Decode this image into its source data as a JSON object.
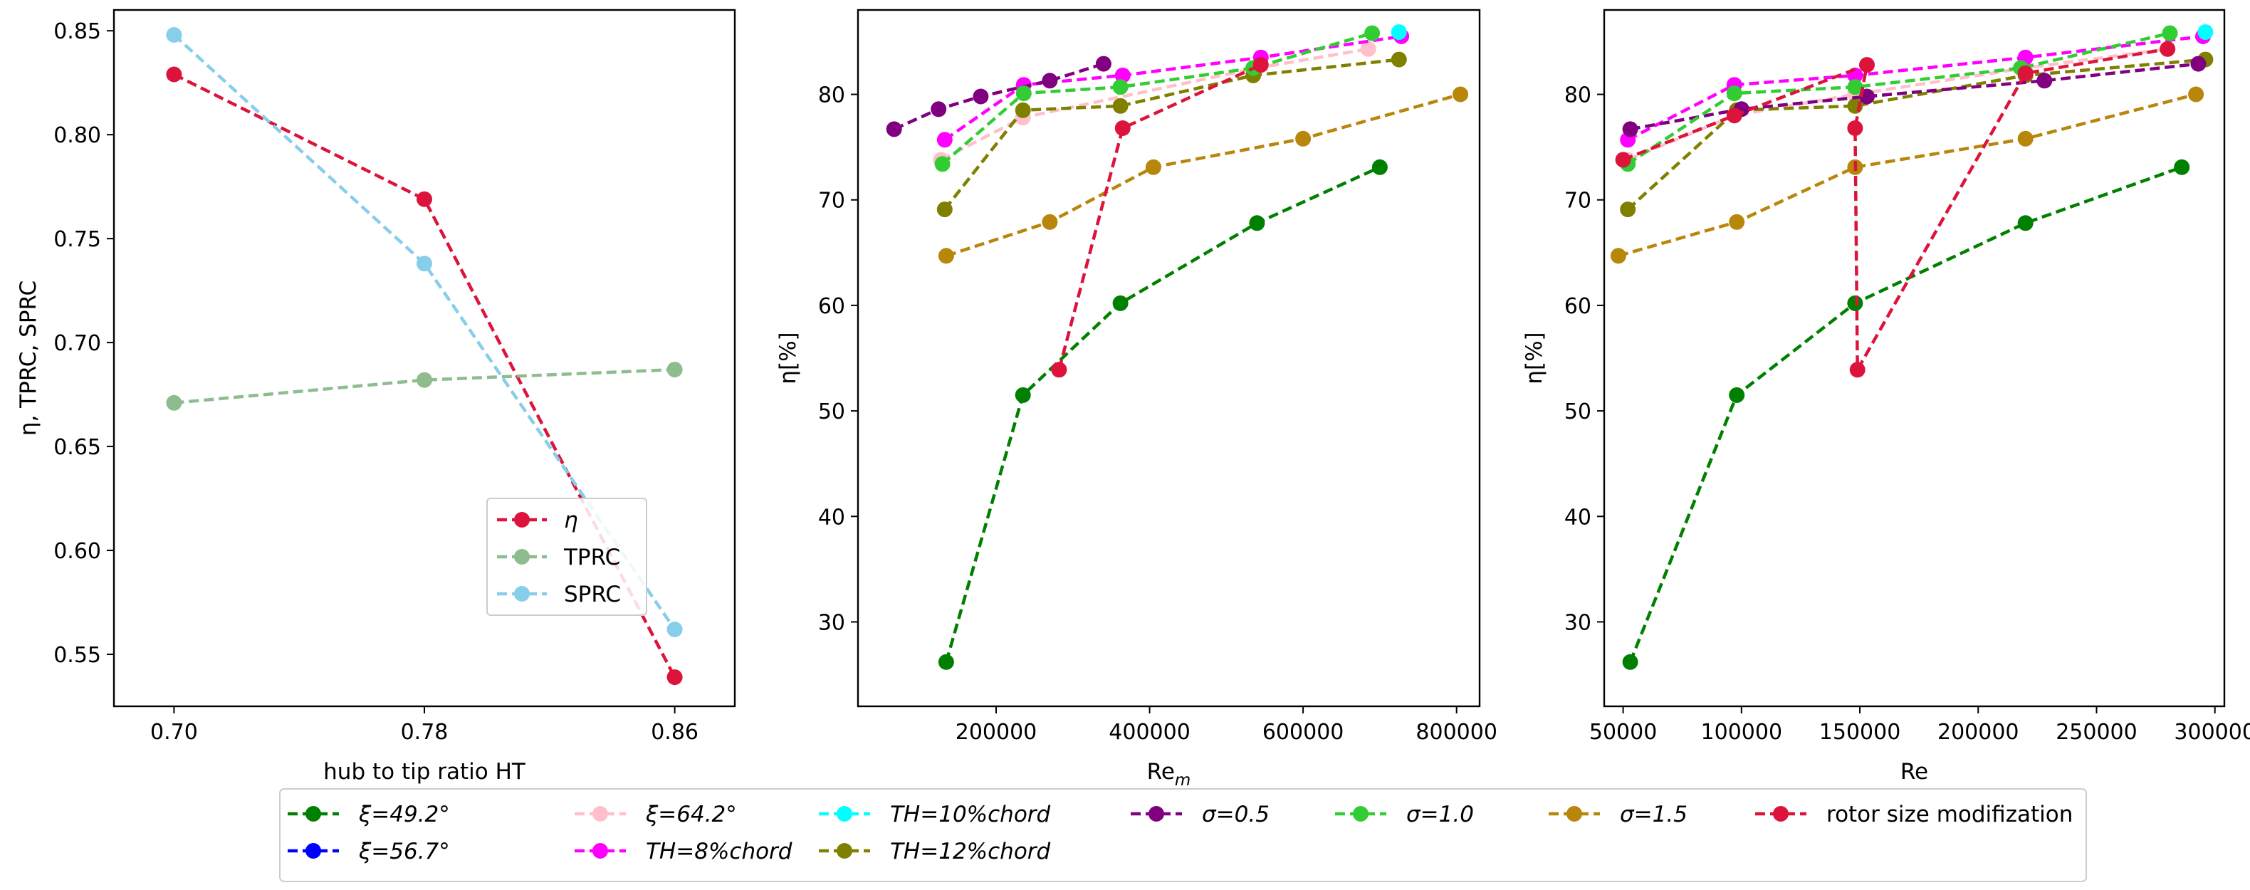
{
  "chart_data": [
    {
      "type": "line",
      "xlabel_prefix": "hub to tip ratio HT",
      "ylabel": "η, TPRC, SPRC",
      "categories": [
        0.7,
        0.78,
        0.86
      ],
      "xticks": [
        "0.70",
        "0.78",
        "0.86"
      ],
      "ylim": [
        0.525,
        0.86
      ],
      "yticks": [
        0.55,
        0.6,
        0.65,
        0.7,
        0.75,
        0.8,
        0.85
      ],
      "ytick_labels": [
        "0.55",
        "0.60",
        "0.65",
        "0.70",
        "0.75",
        "0.80",
        "0.85"
      ],
      "series": [
        {
          "name": "η",
          "color": "#DC143C",
          "x": [
            0.7,
            0.78,
            0.86
          ],
          "y": [
            0.829,
            0.769,
            0.539
          ]
        },
        {
          "name": "TPRC",
          "color": "#8FBC8F",
          "x": [
            0.7,
            0.78,
            0.86
          ],
          "y": [
            0.671,
            0.682,
            0.687
          ]
        },
        {
          "name": "SPRC",
          "color": "#87CEEB",
          "x": [
            0.7,
            0.78,
            0.86
          ],
          "y": [
            0.848,
            0.738,
            0.562
          ]
        }
      ],
      "legend": {
        "placement": "lower-right",
        "entries": [
          "η",
          "TPRC",
          "SPRC"
        ]
      }
    },
    {
      "type": "line",
      "xlabel": "Re",
      "xlabel_sub": "m",
      "ylabel": "η[%]",
      "xlim": [
        20000,
        830000
      ],
      "ylim": [
        22,
        88
      ],
      "xticks": [
        200000,
        400000,
        600000,
        800000
      ],
      "xtick_labels": [
        "200000",
        "400000",
        "600000",
        "800000"
      ],
      "yticks": [
        30,
        40,
        50,
        60,
        70,
        80
      ],
      "ytick_labels": [
        "30",
        "40",
        "50",
        "60",
        "70",
        "80"
      ],
      "series": [
        {
          "name": "ξ=49.2°",
          "color": "#008000",
          "x": [
            135000,
            235000,
            362000,
            540000,
            700000
          ],
          "y": [
            26.2,
            51.5,
            60.2,
            67.8,
            73.1
          ]
        },
        {
          "name": "ξ=56.7°",
          "color": "#0000FF",
          "x": [],
          "y": []
        },
        {
          "name": "ξ=64.2°",
          "color": "#FFC0CB",
          "x": [
            128000,
            235000,
            540000,
            685000
          ],
          "y": [
            73.8,
            77.8,
            82.5,
            84.3
          ]
        },
        {
          "name": "TH=8%chord",
          "color": "#FF00FF",
          "x": [
            133000,
            236000,
            365000,
            545000,
            728000
          ],
          "y": [
            75.7,
            80.9,
            81.8,
            83.5,
            85.5
          ]
        },
        {
          "name": "TH=10%chord",
          "color": "#00FFFF",
          "x": [
            725000
          ],
          "y": [
            85.9
          ]
        },
        {
          "name": "TH=12%chord",
          "color": "#808000",
          "x": [
            133000,
            235000,
            362000,
            535000,
            725000
          ],
          "y": [
            69.1,
            78.5,
            78.9,
            81.8,
            83.3
          ]
        },
        {
          "name": "σ=0.5",
          "color": "#800080",
          "x": [
            67000,
            125000,
            180000,
            270000,
            340000
          ],
          "y": [
            76.7,
            78.6,
            79.8,
            81.3,
            82.9
          ]
        },
        {
          "name": "σ=1.0",
          "color": "#32CD32",
          "x": [
            130000,
            236000,
            362000,
            535000,
            690000
          ],
          "y": [
            73.4,
            80.1,
            80.7,
            82.5,
            85.8
          ]
        },
        {
          "name": "σ=1.5",
          "color": "#B8860B",
          "x": [
            135000,
            270000,
            405000,
            600000,
            805000
          ],
          "y": [
            64.7,
            67.9,
            73.1,
            75.8,
            80.0
          ]
        },
        {
          "name": "rotor size modifization",
          "color": "#DC143C",
          "x": [
            282000,
            365000,
            545000
          ],
          "y": [
            53.9,
            76.8,
            82.8
          ]
        }
      ]
    },
    {
      "type": "line",
      "xlabel": "Re",
      "ylabel": "η[%]",
      "xlim": [
        42000,
        304000
      ],
      "ylim": [
        22,
        88
      ],
      "xticks": [
        50000,
        100000,
        150000,
        200000,
        250000,
        300000
      ],
      "xtick_labels": [
        "50000",
        "100000",
        "150000",
        "200000",
        "250000",
        "300000"
      ],
      "yticks": [
        30,
        40,
        50,
        60,
        70,
        80
      ],
      "ytick_labels": [
        "30",
        "40",
        "50",
        "60",
        "70",
        "80"
      ],
      "series": [
        {
          "name": "ξ=49.2°",
          "color": "#008000",
          "x": [
            53000,
            98000,
            148000,
            220000,
            286000
          ],
          "y": [
            26.2,
            51.5,
            60.2,
            67.8,
            73.1
          ]
        },
        {
          "name": "ξ=56.7°",
          "color": "#0000FF",
          "x": [],
          "y": []
        },
        {
          "name": "ξ=64.2°",
          "color": "#FFC0CB",
          "x": [
            52000,
            97000,
            148000,
            220000,
            280000
          ],
          "y": [
            73.8,
            78.0,
            80.0,
            82.5,
            84.3
          ]
        },
        {
          "name": "TH=8%chord",
          "color": "#FF00FF",
          "x": [
            52000,
            97000,
            148000,
            220000,
            295000
          ],
          "y": [
            75.7,
            80.9,
            81.8,
            83.5,
            85.5
          ]
        },
        {
          "name": "TH=10%chord",
          "color": "#00FFFF",
          "x": [
            296000
          ],
          "y": [
            85.9
          ]
        },
        {
          "name": "TH=12%chord",
          "color": "#808000",
          "x": [
            52000,
            98000,
            148000,
            220000,
            296000
          ],
          "y": [
            69.1,
            78.5,
            78.9,
            81.8,
            83.3
          ]
        },
        {
          "name": "σ=0.5",
          "color": "#800080",
          "x": [
            53000,
            100000,
            153000,
            228000,
            293000
          ],
          "y": [
            76.7,
            78.6,
            79.8,
            81.3,
            82.9
          ]
        },
        {
          "name": "σ=1.0",
          "color": "#32CD32",
          "x": [
            52000,
            97000,
            148000,
            218000,
            281000
          ],
          "y": [
            73.4,
            80.1,
            80.7,
            82.5,
            85.8
          ]
        },
        {
          "name": "σ=1.5",
          "color": "#B8860B",
          "x": [
            48000,
            98000,
            148000,
            220000,
            292000
          ],
          "y": [
            64.7,
            67.9,
            73.1,
            75.8,
            80.0
          ]
        },
        {
          "name": "rotor size modifization",
          "color": "#DC143C",
          "x": [
            50000,
            97000,
            153000,
            148000,
            149000,
            220000,
            280000
          ],
          "y": [
            73.8,
            78.0,
            82.8,
            76.8,
            53.9,
            82.0,
            84.3
          ]
        }
      ]
    }
  ],
  "bottom_legend": {
    "rows": [
      [
        {
          "label": "ξ=49.2°",
          "color": "#008000"
        },
        {
          "label": "ξ=64.2°",
          "color": "#FFC0CB"
        },
        {
          "label": "TH=10%chord",
          "color": "#00FFFF"
        },
        {
          "label": "σ=0.5",
          "color": "#800080"
        },
        {
          "label": "σ=1.0",
          "color": "#32CD32"
        },
        {
          "label": "σ=1.5",
          "color": "#B8860B"
        },
        {
          "label": "rotor size modifization",
          "color": "#DC143C"
        }
      ],
      [
        {
          "label": "ξ=56.7°",
          "color": "#0000FF"
        },
        {
          "label": "TH=8%chord",
          "color": "#FF00FF"
        },
        {
          "label": "TH=12%chord",
          "color": "#808000"
        }
      ]
    ]
  }
}
